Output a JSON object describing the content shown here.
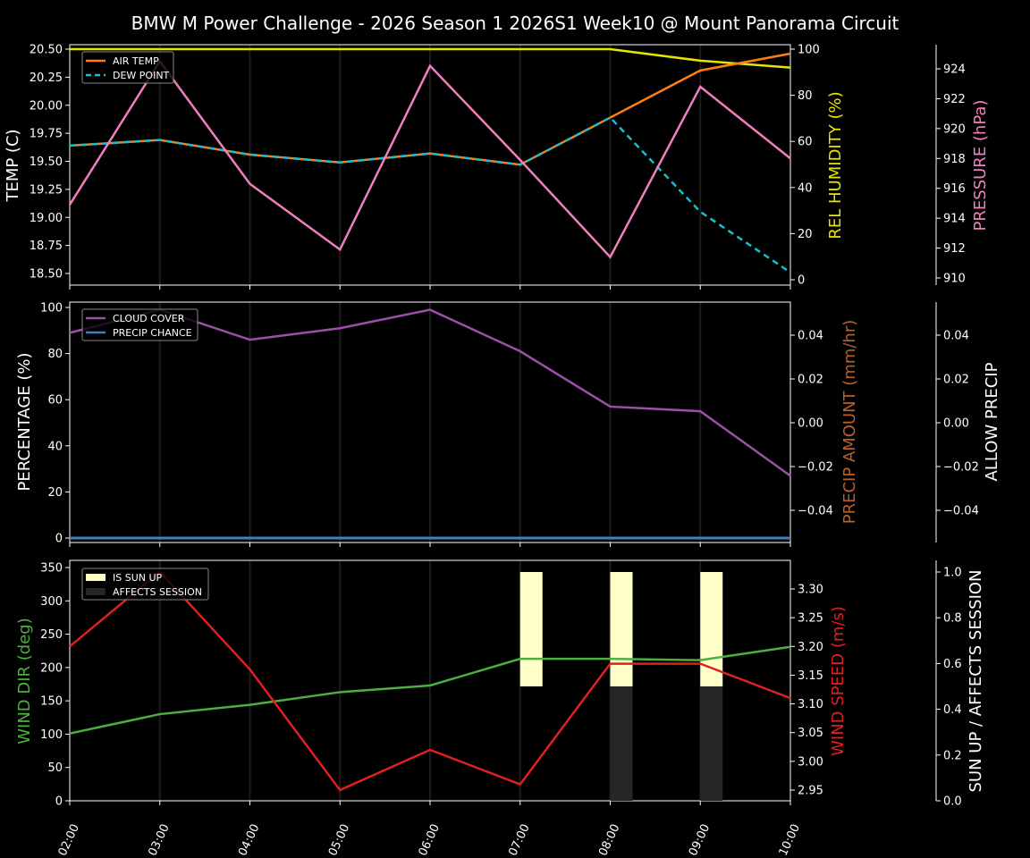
{
  "title": "BMW M Power Challenge - 2026 Season 1 2026S1 Week10 @ Mount Panorama Circuit",
  "colors": {
    "background": "#000000",
    "air_temp": "#ff7f0e",
    "dew_point": "#17becf",
    "rel_humidity": "#e5e500",
    "pressure": "#f07fbf",
    "cloud_cover": "#9b4fa8",
    "precip_chance": "#3f7fbf",
    "precip_amount_label": "#b8602a",
    "wind_dir": "#4caf3f",
    "wind_speed": "#e02020",
    "sun_up": "#ffffc8",
    "affects_session": "#262626"
  },
  "panels": {
    "top": {
      "ylabel_left": "TEMP (C)",
      "ylabel_right1": "REL HUMIDITY (%)",
      "ylabel_right2": "PRESSURE (hPa)",
      "legend": [
        "AIR TEMP",
        "DEW POINT"
      ],
      "left_ticks": [
        "20.50",
        "20.25",
        "20.00",
        "19.75",
        "19.50",
        "19.25",
        "19.00",
        "18.75",
        "18.50"
      ],
      "right1_ticks": [
        "100",
        "80",
        "60",
        "40",
        "20",
        "0"
      ],
      "right2_ticks": [
        "924",
        "922",
        "920",
        "918",
        "916",
        "914",
        "912",
        "910"
      ]
    },
    "middle": {
      "ylabel_left": "PERCENTAGE (%)",
      "ylabel_right1": "PRECIP AMOUNT (mm/hr)",
      "ylabel_right2": "ALLOW PRECIP",
      "legend": [
        "CLOUD COVER",
        "PRECIP CHANCE"
      ],
      "left_ticks": [
        "100",
        "80",
        "60",
        "40",
        "20",
        "0"
      ],
      "right1_ticks": [
        "0.04",
        "0.02",
        "0.00",
        "−0.02",
        "−0.04"
      ],
      "right2_ticks": [
        "0.04",
        "0.02",
        "0.00",
        "−0.02",
        "−0.04"
      ]
    },
    "bottom": {
      "ylabel_left": "WIND DIR (deg)",
      "ylabel_right1": "WIND SPEED (m/s)",
      "ylabel_right2": "SUN UP / AFFECTS SESSION",
      "legend": [
        "IS SUN UP",
        "AFFECTS SESSION"
      ],
      "left_ticks": [
        "350",
        "300",
        "250",
        "200",
        "150",
        "100",
        "50",
        "0"
      ],
      "right1_ticks": [
        "3.30",
        "3.25",
        "3.20",
        "3.15",
        "3.10",
        "3.05",
        "3.00",
        "2.95"
      ],
      "right2_ticks": [
        "1.0",
        "0.8",
        "0.6",
        "0.4",
        "0.2",
        "0.0"
      ]
    }
  },
  "x_ticks": [
    "02:00",
    "03:00",
    "04:00",
    "05:00",
    "06:00",
    "07:00",
    "08:00",
    "09:00",
    "10:00"
  ],
  "chart_data": [
    {
      "type": "line",
      "title": "BMW M Power Challenge - 2026 Season 1 2026S1 Week10 @ Mount Panorama Circuit",
      "x": [
        "02:00",
        "03:00",
        "04:00",
        "05:00",
        "06:00",
        "07:00",
        "08:00",
        "09:00",
        "10:00"
      ],
      "ylabel": "TEMP (C)",
      "ylim": [
        18.4,
        20.55
      ],
      "series": [
        {
          "name": "AIR TEMP",
          "axis": "TEMP (C)",
          "values": [
            19.64,
            19.69,
            19.56,
            19.49,
            19.57,
            19.47,
            19.89,
            20.31,
            20.46
          ]
        },
        {
          "name": "DEW POINT",
          "axis": "TEMP (C)",
          "values": [
            19.64,
            19.69,
            19.56,
            19.49,
            19.57,
            19.47,
            19.89,
            19.05,
            18.51
          ]
        },
        {
          "name": "REL HUMIDITY",
          "axis": "REL HUMIDITY (%)",
          "values": [
            100,
            100,
            100,
            100,
            100,
            100,
            100,
            95,
            92
          ]
        },
        {
          "name": "PRESSURE",
          "axis": "PRESSURE (hPa)",
          "values": [
            914.9,
            924.5,
            916.3,
            911.9,
            924.2,
            917.9,
            911.4,
            922.8,
            918.0
          ]
        }
      ],
      "legend_position": "upper left",
      "grid": "vertical"
    },
    {
      "type": "line",
      "x": [
        "02:00",
        "03:00",
        "04:00",
        "05:00",
        "06:00",
        "07:00",
        "08:00",
        "09:00",
        "10:00"
      ],
      "ylabel": "PERCENTAGE (%)",
      "ylim": [
        -2,
        102
      ],
      "series": [
        {
          "name": "CLOUD COVER",
          "values": [
            89,
            99,
            86,
            91,
            99,
            81,
            57,
            55,
            27
          ]
        },
        {
          "name": "PRECIP CHANCE",
          "values": [
            0,
            0,
            0,
            0,
            0,
            0,
            0,
            0,
            0
          ]
        }
      ],
      "right_axes": [
        {
          "label": "PRECIP AMOUNT (mm/hr)",
          "ylim": [
            -0.055,
            0.055
          ]
        },
        {
          "label": "ALLOW PRECIP",
          "ylim": [
            -0.055,
            0.055
          ]
        }
      ],
      "legend_position": "upper left"
    },
    {
      "type": "line",
      "x": [
        "02:00",
        "03:00",
        "04:00",
        "05:00",
        "06:00",
        "07:00",
        "08:00",
        "09:00",
        "10:00"
      ],
      "ylabel": "WIND DIR (deg)",
      "ylim": [
        0,
        360
      ],
      "series": [
        {
          "name": "WIND DIR",
          "axis": "WIND DIR (deg)",
          "values": [
            101,
            130,
            144,
            163,
            173,
            213,
            213,
            211,
            231
          ]
        },
        {
          "name": "WIND SPEED",
          "axis": "WIND SPEED (m/s)",
          "values": [
            3.2,
            3.33,
            3.16,
            2.95,
            3.02,
            2.96,
            3.17,
            3.17,
            3.11
          ]
        },
        {
          "name": "IS SUN UP",
          "axis": "SUN UP / AFFECTS SESSION",
          "type": "bar",
          "values": [
            0,
            0,
            0,
            0,
            0,
            1,
            1,
            1,
            0
          ],
          "bar_range": [
            0.5,
            1.0
          ]
        },
        {
          "name": "AFFECTS SESSION",
          "axis": "SUN UP / AFFECTS SESSION",
          "type": "bar",
          "values": [
            0,
            0,
            0,
            0,
            0,
            0,
            1,
            1,
            0
          ],
          "bar_range": [
            0.0,
            0.5
          ]
        }
      ],
      "right_axes": [
        {
          "label": "WIND SPEED (m/s)",
          "ylim": [
            2.93,
            3.345
          ]
        },
        {
          "label": "SUN UP / AFFECTS SESSION",
          "ylim": [
            0,
            1.02
          ]
        }
      ],
      "legend_position": "upper left"
    }
  ]
}
